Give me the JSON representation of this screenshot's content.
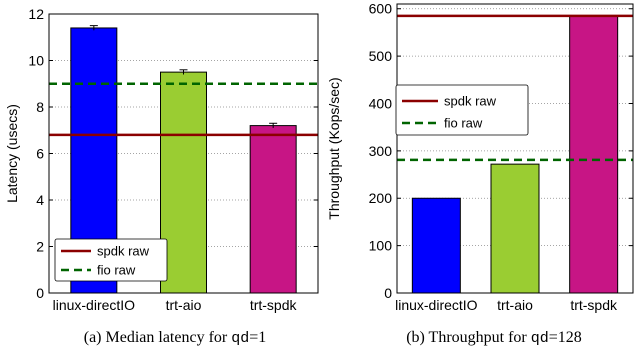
{
  "captions": [
    {
      "prefix": "(a) Median latency for ",
      "code": "qd",
      "suffix": "=1"
    },
    {
      "prefix": "(b) Throughput for ",
      "code": "qd",
      "suffix": "=128"
    }
  ],
  "colors": {
    "linux_directIO": "#0000ff",
    "trt_aio": "#9acd32",
    "trt_spdk": "#c71585",
    "spdk_raw": "#8b0000",
    "fio_raw": "#006400",
    "grid": "#888888"
  },
  "chart_data": [
    {
      "type": "bar",
      "categories": [
        "linux-directIO",
        "trt-aio",
        "trt-spdk"
      ],
      "values": [
        11.4,
        9.5,
        7.2
      ],
      "errors": [
        0.1,
        0.1,
        0.1
      ],
      "ylabel": "Latency (usecs)",
      "ylim": [
        0,
        12
      ],
      "yticks": [
        0,
        2,
        4,
        6,
        8,
        10,
        12
      ],
      "grid": true,
      "reference_lines": [
        {
          "name": "spdk raw",
          "value": 6.8,
          "style": "solid"
        },
        {
          "name": "fio raw",
          "value": 9.0,
          "style": "dashed"
        }
      ],
      "legend": {
        "placement": "lower-left",
        "entries": [
          "spdk raw",
          "fio raw"
        ]
      }
    },
    {
      "type": "bar",
      "categories": [
        "linux-directIO",
        "trt-aio",
        "trt-spdk"
      ],
      "values": [
        200,
        272,
        585
      ],
      "ylabel": "Throughput (Kops/sec)",
      "ylim": [
        0,
        610
      ],
      "yticks": [
        0,
        100,
        200,
        300,
        400,
        500,
        600
      ],
      "grid": true,
      "reference_lines": [
        {
          "name": "spdk raw",
          "value": 585,
          "style": "solid"
        },
        {
          "name": "fio raw",
          "value": 281,
          "style": "dashed"
        }
      ],
      "legend": {
        "placement": "upper-left",
        "entries": [
          "spdk raw",
          "fio raw"
        ]
      }
    }
  ]
}
